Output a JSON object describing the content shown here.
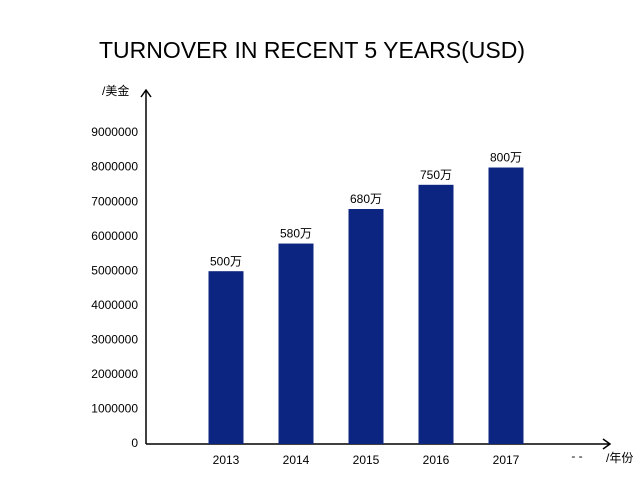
{
  "chart_data": {
    "type": "bar",
    "title": "TURNOVER IN RECENT 5 YEARS(USD)",
    "y_label": "/美金",
    "x_label": "/年份",
    "annotation": "- -",
    "categories": [
      "2013",
      "2014",
      "2015",
      "2016",
      "2017"
    ],
    "values": [
      5000000,
      5800000,
      6800000,
      7500000,
      8000000
    ],
    "value_labels": [
      "500万",
      "580万",
      "680万",
      "750万",
      "800万"
    ],
    "color": "#0c2580",
    "ylim": [
      0,
      10000000
    ],
    "yticks": [
      0,
      1000000,
      2000000,
      3000000,
      4000000,
      5000000,
      6000000,
      7000000,
      8000000,
      9000000
    ],
    "grid": false
  }
}
